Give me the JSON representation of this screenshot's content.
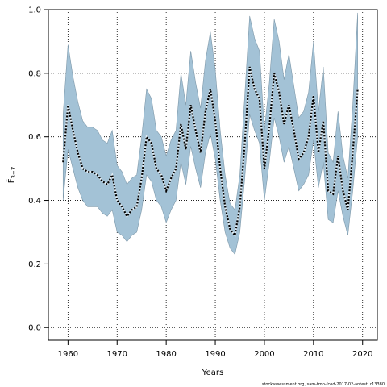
{
  "chart_data": {
    "type": "area",
    "xlabel": "Years",
    "ylabel": "F̄",
    "ylabel_subscript": "3−7",
    "xlim": [
      1956,
      2023
    ],
    "ylim": [
      -0.04,
      1.0
    ],
    "grid": true,
    "xticks": [
      1960,
      1970,
      1980,
      1990,
      2000,
      2010,
      2020
    ],
    "yticks": [
      0.0,
      0.2,
      0.4,
      0.6,
      0.8,
      1.0
    ],
    "xtick_labels": [
      "1960",
      "1970",
      "1980",
      "1990",
      "2000",
      "2010",
      "2020"
    ],
    "ytick_labels": [
      "0.0",
      "0.2",
      "0.4",
      "0.6",
      "0.8",
      "1.0"
    ],
    "band_color": "#a3c2d6",
    "band_edge_color": "#7f99aa",
    "line_color": "#000000",
    "years": [
      1959,
      1960,
      1961,
      1962,
      1963,
      1964,
      1965,
      1966,
      1967,
      1968,
      1969,
      1970,
      1971,
      1972,
      1973,
      1974,
      1975,
      1976,
      1977,
      1978,
      1979,
      1980,
      1981,
      1982,
      1983,
      1984,
      1985,
      1986,
      1987,
      1988,
      1989,
      1990,
      1991,
      1992,
      1993,
      1994,
      1995,
      1996,
      1997,
      1998,
      1999,
      2000,
      2001,
      2002,
      2003,
      2004,
      2005,
      2006,
      2007,
      2008,
      2009,
      2010,
      2011,
      2012,
      2013,
      2014,
      2015,
      2016,
      2017,
      2018,
      2019
    ],
    "estimate": [
      0.52,
      0.7,
      0.62,
      0.55,
      0.5,
      0.49,
      0.49,
      0.48,
      0.46,
      0.45,
      0.48,
      0.4,
      0.38,
      0.35,
      0.37,
      0.38,
      0.47,
      0.6,
      0.58,
      0.5,
      0.48,
      0.43,
      0.47,
      0.5,
      0.64,
      0.56,
      0.7,
      0.62,
      0.55,
      0.68,
      0.75,
      0.65,
      0.5,
      0.38,
      0.31,
      0.29,
      0.38,
      0.58,
      0.82,
      0.75,
      0.72,
      0.5,
      0.63,
      0.8,
      0.74,
      0.64,
      0.7,
      0.62,
      0.53,
      0.55,
      0.6,
      0.73,
      0.55,
      0.65,
      0.43,
      0.42,
      0.54,
      0.43,
      0.37,
      0.55,
      0.75
    ],
    "lower": [
      0.4,
      0.56,
      0.5,
      0.44,
      0.4,
      0.38,
      0.38,
      0.38,
      0.36,
      0.35,
      0.37,
      0.3,
      0.29,
      0.27,
      0.29,
      0.3,
      0.37,
      0.48,
      0.46,
      0.4,
      0.38,
      0.33,
      0.37,
      0.4,
      0.52,
      0.45,
      0.57,
      0.5,
      0.44,
      0.55,
      0.61,
      0.53,
      0.4,
      0.3,
      0.25,
      0.23,
      0.3,
      0.47,
      0.67,
      0.62,
      0.58,
      0.4,
      0.52,
      0.66,
      0.6,
      0.52,
      0.57,
      0.5,
      0.43,
      0.45,
      0.48,
      0.59,
      0.44,
      0.52,
      0.34,
      0.33,
      0.43,
      0.35,
      0.29,
      0.43,
      0.6
    ],
    "upper": [
      0.67,
      0.89,
      0.79,
      0.71,
      0.65,
      0.63,
      0.63,
      0.62,
      0.59,
      0.58,
      0.62,
      0.51,
      0.49,
      0.45,
      0.47,
      0.48,
      0.6,
      0.75,
      0.72,
      0.62,
      0.6,
      0.54,
      0.59,
      0.62,
      0.8,
      0.7,
      0.87,
      0.77,
      0.69,
      0.84,
      0.93,
      0.81,
      0.62,
      0.48,
      0.39,
      0.37,
      0.48,
      0.73,
      0.98,
      0.91,
      0.87,
      0.62,
      0.77,
      0.97,
      0.9,
      0.78,
      0.86,
      0.76,
      0.66,
      0.68,
      0.74,
      0.9,
      0.68,
      0.82,
      0.55,
      0.52,
      0.68,
      0.54,
      0.47,
      0.7,
      0.99
    ]
  },
  "footnote": "stockassessment.org, sam-tmb-fcod-2017-02-antest, r13380"
}
